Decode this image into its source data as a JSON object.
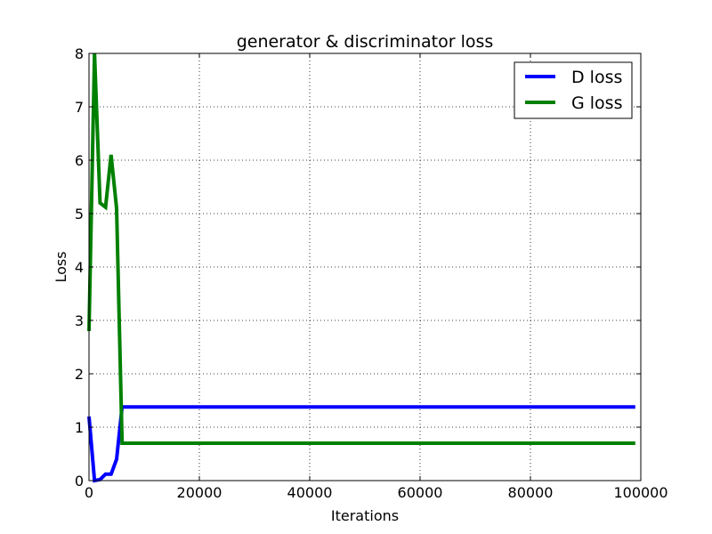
{
  "chart_data": {
    "type": "line",
    "title": "generator & discriminator loss",
    "xlabel": "Iterations",
    "ylabel": "Loss",
    "xlim": [
      0,
      100000
    ],
    "ylim": [
      0,
      8
    ],
    "xticks": [
      0,
      20000,
      40000,
      60000,
      80000,
      100000
    ],
    "yticks": [
      0,
      1,
      2,
      3,
      4,
      5,
      6,
      7,
      8
    ],
    "grid": true,
    "legend_position": "top-right",
    "series": [
      {
        "name": "D loss",
        "color": "#0000ff",
        "x": [
          0,
          1000,
          2000,
          3000,
          4000,
          5000,
          6000,
          7000,
          8000,
          10000,
          20000,
          40000,
          60000,
          80000,
          99000
        ],
        "y": [
          1.2,
          0.0,
          0.02,
          0.12,
          0.12,
          0.4,
          1.38,
          1.38,
          1.38,
          1.38,
          1.38,
          1.38,
          1.38,
          1.38,
          1.38
        ]
      },
      {
        "name": "G loss",
        "color": "#008000",
        "x": [
          0,
          1000,
          2000,
          3000,
          4000,
          5000,
          6000,
          7000,
          8000,
          10000,
          20000,
          40000,
          60000,
          80000,
          99000
        ],
        "y": [
          2.8,
          8.0,
          5.2,
          5.12,
          6.1,
          5.1,
          0.7,
          0.7,
          0.7,
          0.7,
          0.7,
          0.7,
          0.7,
          0.7,
          0.7
        ]
      }
    ]
  }
}
